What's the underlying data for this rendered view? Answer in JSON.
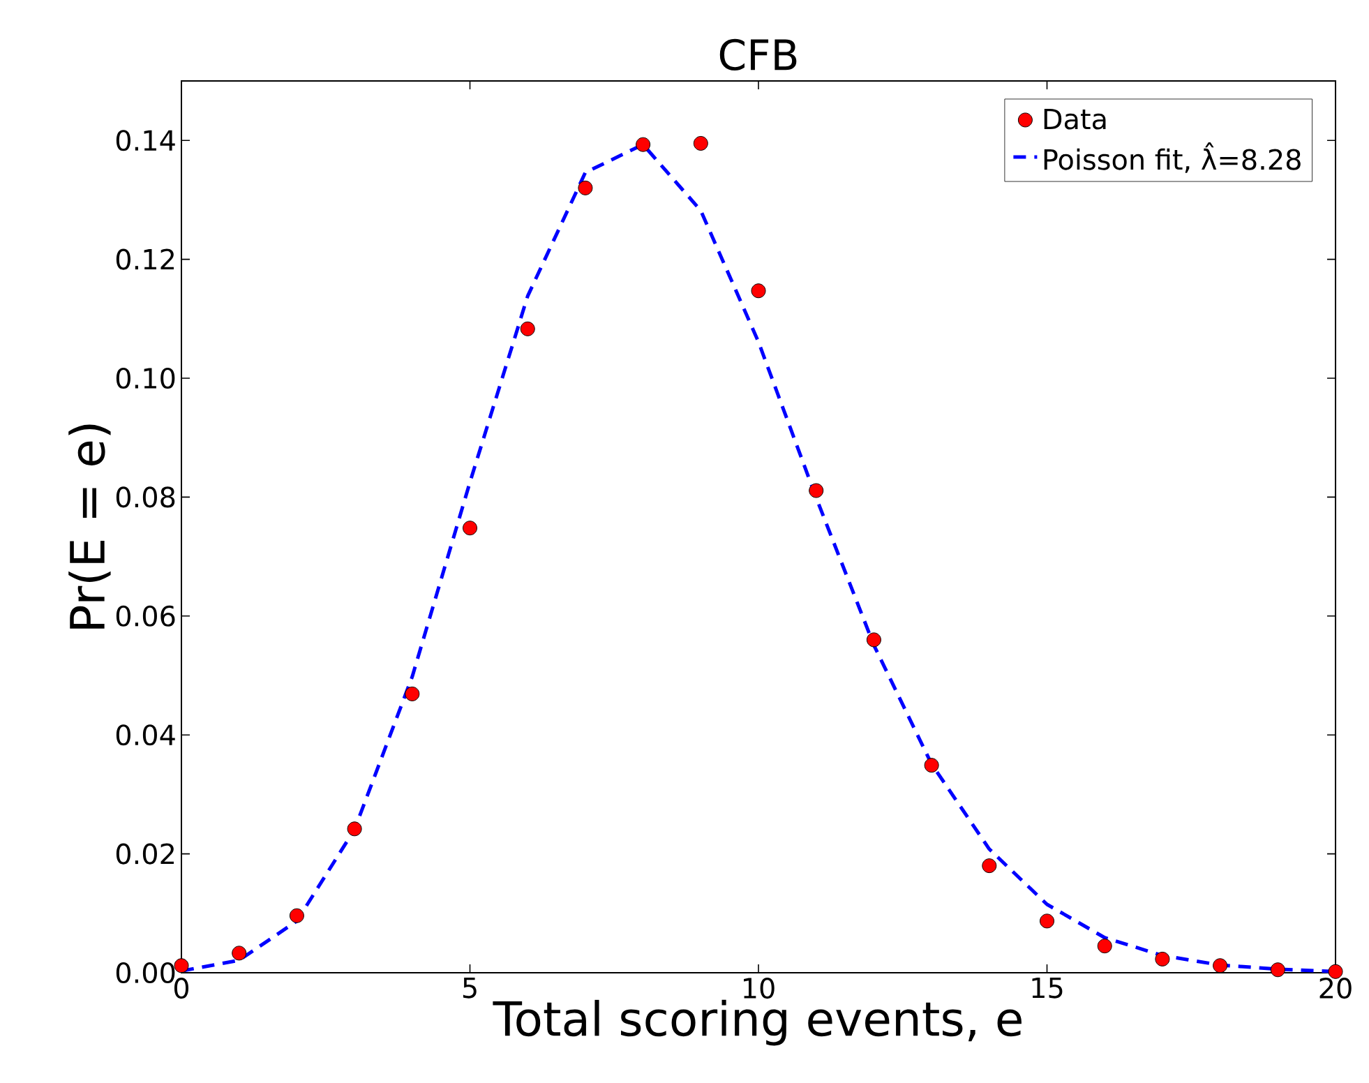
{
  "chart_data": {
    "type": "scatter",
    "title": "CFB",
    "xlabel": "Total scoring events, e",
    "ylabel": "Pr(E = e)",
    "x": [
      0,
      1,
      2,
      3,
      4,
      5,
      6,
      7,
      8,
      9,
      10,
      11,
      12,
      13,
      14,
      15,
      16,
      17,
      18,
      19,
      20
    ],
    "series": [
      {
        "name": "Data",
        "color": "#ff0000",
        "marker": "circle",
        "values": [
          0.0012,
          0.0033,
          0.0096,
          0.0242,
          0.0469,
          0.0748,
          0.1083,
          0.132,
          0.1393,
          0.1395,
          0.1147,
          0.0811,
          0.056,
          0.0349,
          0.018,
          0.0087,
          0.0045,
          0.0023,
          0.0012,
          0.0005,
          0.0002
        ]
      },
      {
        "name": "Poisson fit, λ̂=8.28",
        "type": "line",
        "color": "#0000ff",
        "line_style": "dashed",
        "marker": "none",
        "values": [
          0.0003,
          0.0021,
          0.0087,
          0.0241,
          0.0498,
          0.0825,
          0.1138,
          0.1346,
          0.1393,
          0.1282,
          0.1061,
          0.0799,
          0.0551,
          0.0351,
          0.0208,
          0.0115,
          0.0059,
          0.0029,
          0.0013,
          0.0006,
          0.0002
        ]
      }
    ],
    "xlim": [
      0,
      20
    ],
    "ylim": [
      0,
      0.15
    ],
    "xticks": [
      0,
      5,
      10,
      15,
      20
    ],
    "yticks": [
      {
        "value": 0,
        "label": "0.00"
      },
      {
        "value": 0.02,
        "label": "0.02"
      },
      {
        "value": 0.04,
        "label": "0.04"
      },
      {
        "value": 0.06,
        "label": "0.06"
      },
      {
        "value": 0.08,
        "label": "0.08"
      },
      {
        "value": 0.1,
        "label": "0.10"
      },
      {
        "value": 0.12,
        "label": "0.12"
      },
      {
        "value": 0.14,
        "label": "0.14"
      }
    ],
    "grid": false,
    "legend": "top right"
  }
}
